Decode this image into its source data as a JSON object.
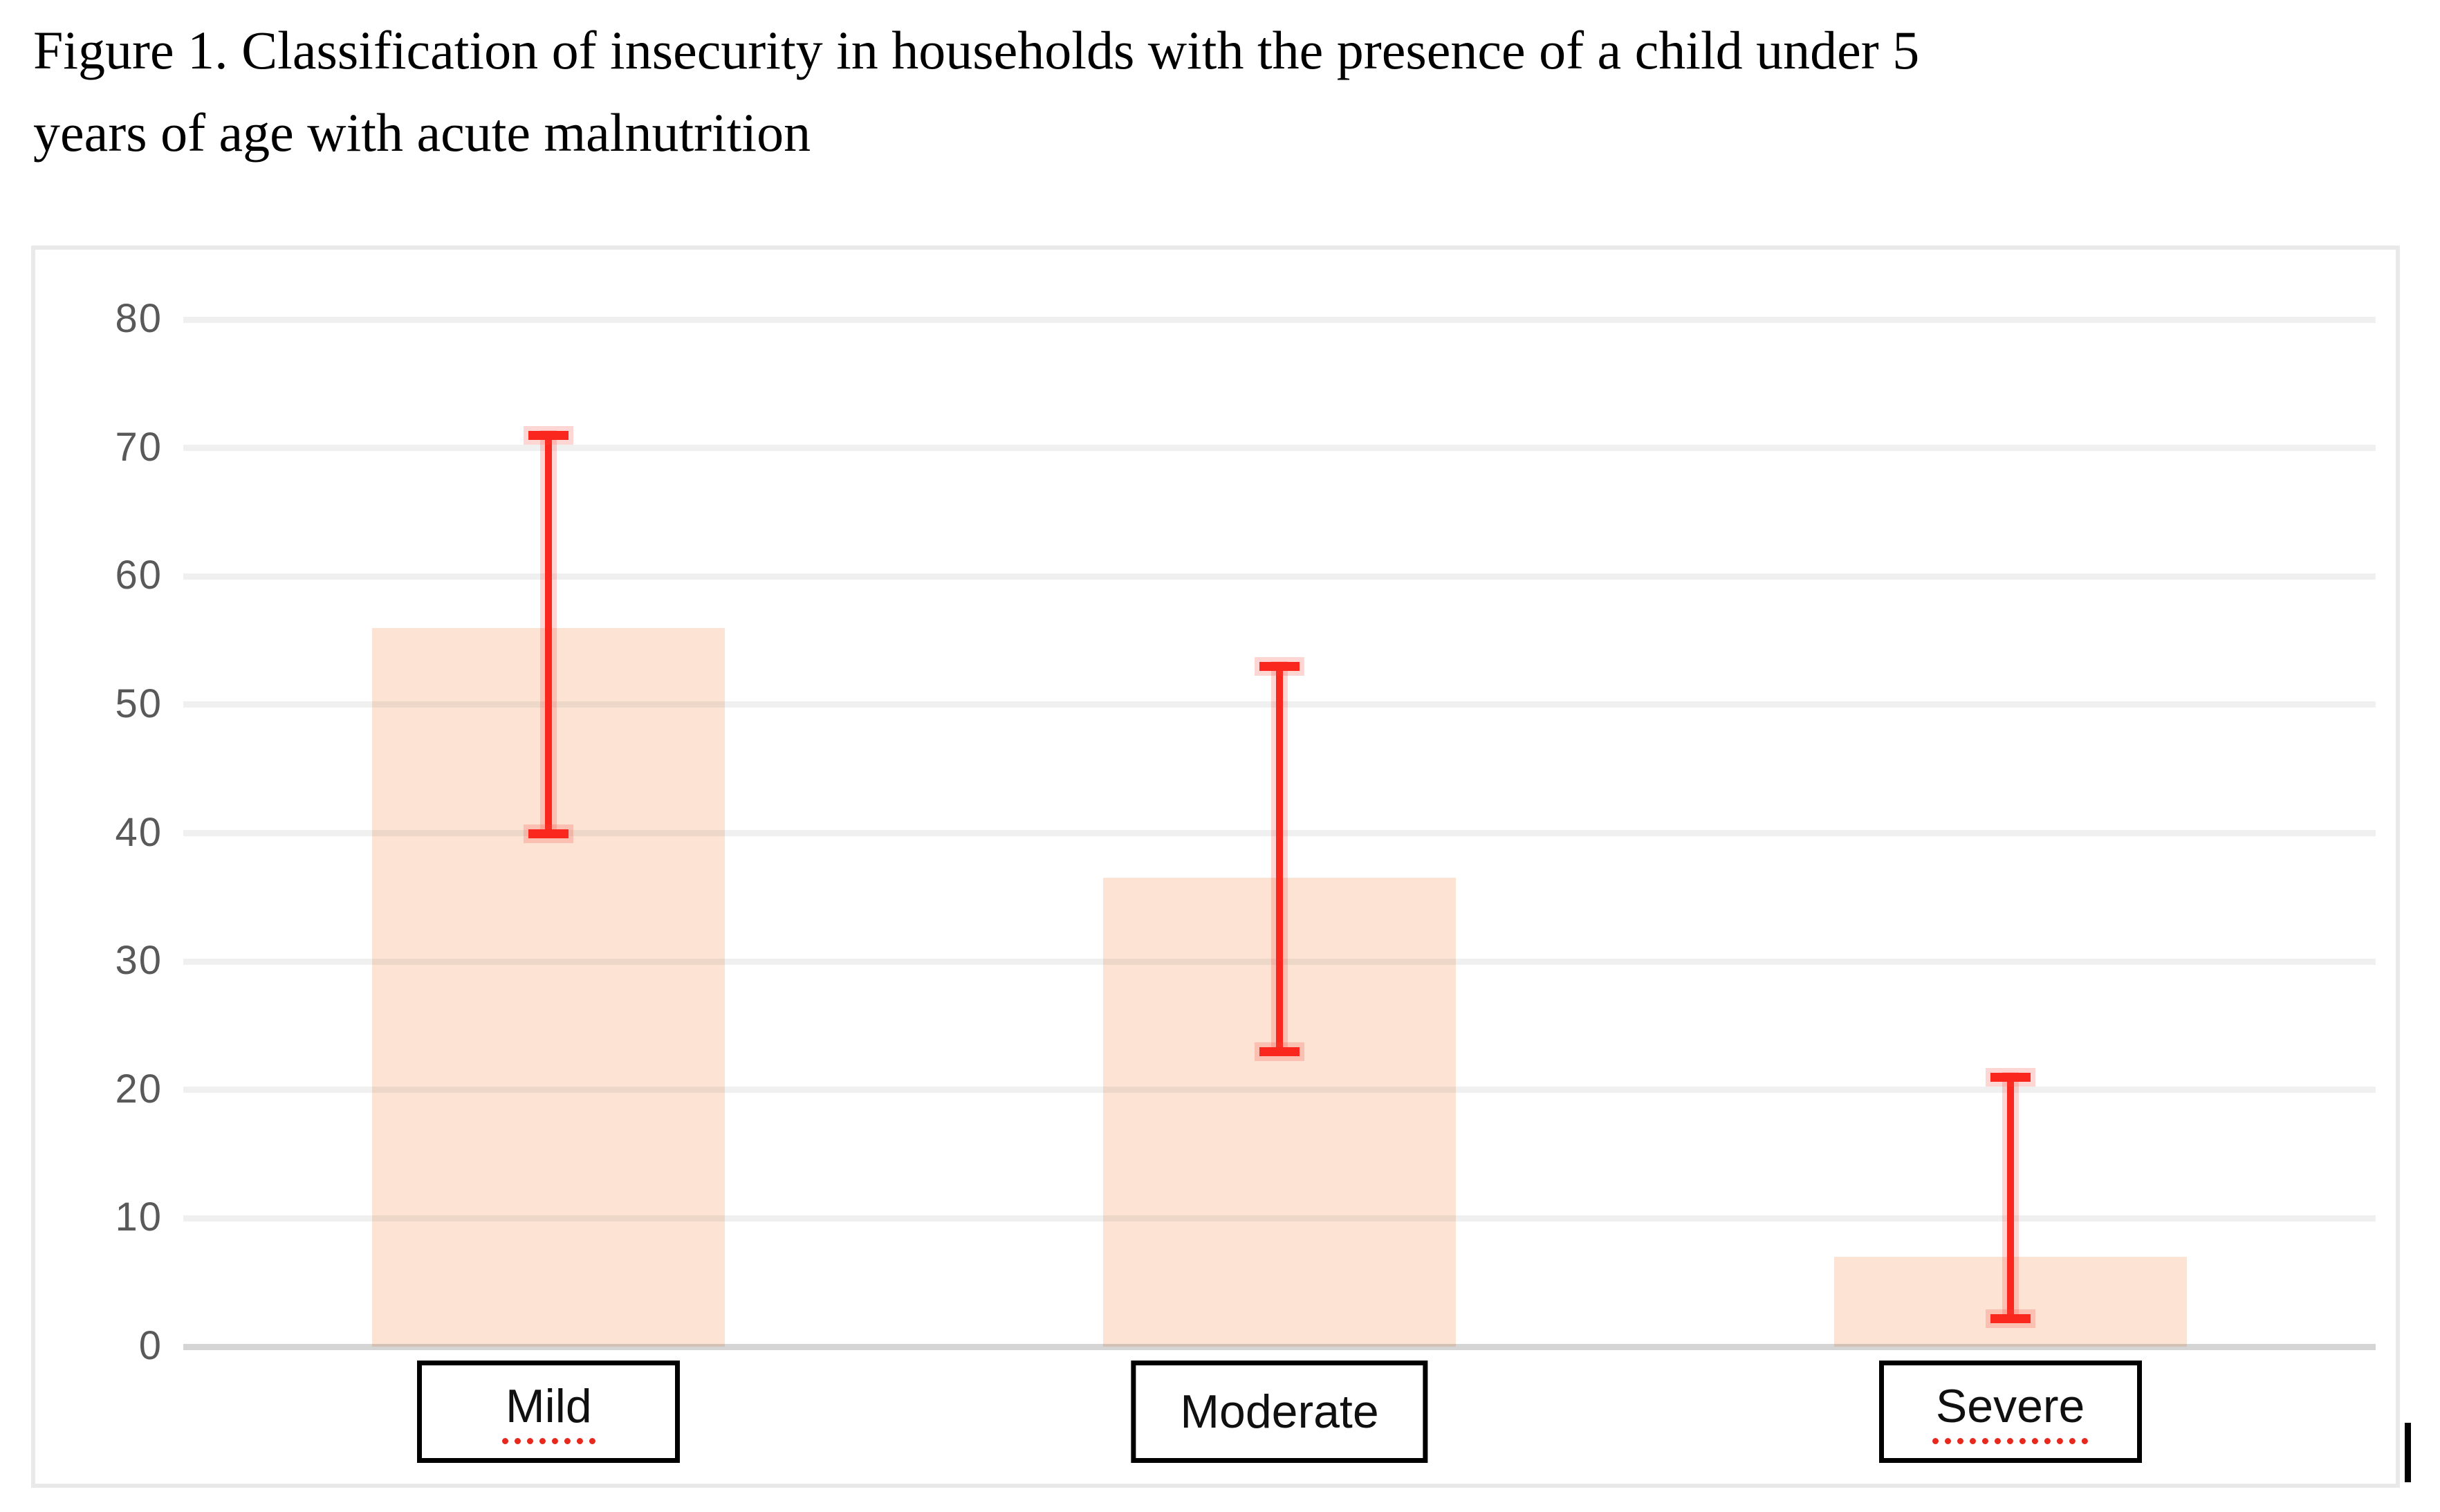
{
  "figure": {
    "caption": "Figure 1. Classification of insecurity in households with the presence of a child under 5 years of age with acute malnutrition",
    "caption_line1": "Figure 1. Classification of insecurity in households with the presence of a child under 5",
    "caption_line2": "years of age with acute malnutrition"
  },
  "chart_data": {
    "type": "bar",
    "title": "Figure 1. Classification of insecurity in households with the presence of a child under 5 years of age with acute malnutrition",
    "categories": [
      "Mild",
      "Moderate",
      "Severe"
    ],
    "values": [
      56,
      36.5,
      7
    ],
    "error_low": [
      40,
      23,
      2.2
    ],
    "error_high": [
      71,
      53,
      21
    ],
    "ylim": [
      0,
      80
    ],
    "yticks": [
      80,
      70,
      60,
      50,
      40,
      30,
      20,
      10,
      0
    ],
    "xlabel": "",
    "ylabel": "",
    "grid": true,
    "legend_position": "none",
    "bar_color": "#fce3d4",
    "error_bar_color": "#f9271e",
    "gridline_color": "#ececec",
    "axis_label_color": "#595959",
    "category_box_border_color": "#000000",
    "spellcheck_underline_color": "#e8271d",
    "spellcheck_underlined": [
      true,
      false,
      true
    ]
  }
}
